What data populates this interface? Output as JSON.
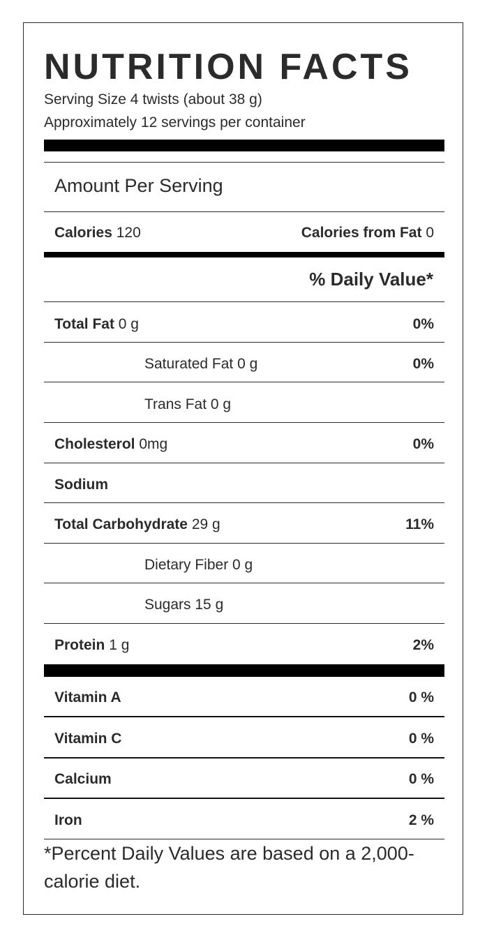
{
  "title": "NUTRITION FACTS",
  "serving_size": "Serving Size 4 twists (about  38 g)",
  "servings_per_container": "Approximately 12 servings per container",
  "amount_per_serving": "Amount Per Serving",
  "calories": {
    "label": "Calories",
    "value": "120"
  },
  "calories_from_fat": {
    "label": "Calories from Fat",
    "value": "0"
  },
  "daily_value_header": "% Daily Value*",
  "nutrients": [
    {
      "label": "Total Fat",
      "amount": "0 g",
      "dv": "0%"
    },
    {
      "label": "Saturated Fat 0 g",
      "amount": "",
      "dv": "0%"
    },
    {
      "label": "Trans Fat 0 g",
      "amount": "",
      "dv": ""
    },
    {
      "label": "Cholesterol",
      "amount": "0mg",
      "dv": "0%"
    },
    {
      "label": "Sodium",
      "amount": "",
      "dv": ""
    },
    {
      "label": "Total Carbohydrate",
      "amount": "29 g",
      "dv": "11%"
    },
    {
      "label": "Dietary Fiber 0 g",
      "amount": "",
      "dv": ""
    },
    {
      "label": "Sugars 15 g",
      "amount": "",
      "dv": ""
    },
    {
      "label": "Protein",
      "amount": "1 g",
      "dv": "2%"
    }
  ],
  "vitamins": [
    {
      "label": "Vitamin A",
      "dv": "0 %"
    },
    {
      "label": "Vitamin C",
      "dv": "0 %"
    },
    {
      "label": "Calcium",
      "dv": "0 %"
    },
    {
      "label": "Iron",
      "dv": "2 %"
    }
  ],
  "footnote": "*Percent Daily Values are based on a 2,000-calorie diet."
}
